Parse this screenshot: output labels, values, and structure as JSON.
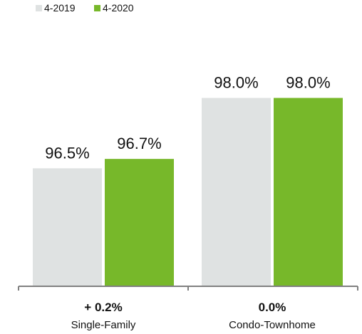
{
  "colors": {
    "series_2019": "#dfe2e2",
    "series_2020": "#77b82a",
    "axis": "#808080",
    "text": "#111111"
  },
  "chart_data": {
    "type": "bar",
    "categories": [
      "Single-Family",
      "Condo-Townhome"
    ],
    "series": [
      {
        "name": "4-2019",
        "values": [
          96.5,
          98.0
        ],
        "labels": [
          "96.5%",
          "98.0%"
        ]
      },
      {
        "name": "4-2020",
        "values": [
          96.7,
          98.0
        ],
        "labels": [
          "96.7%",
          "98.0%"
        ]
      }
    ],
    "changes": [
      "+ 0.2%",
      "0.0%"
    ],
    "legend_position": "top-left",
    "ylim": [
      94.0,
      98.6
    ],
    "grid": false,
    "title": "",
    "xlabel": "",
    "ylabel": ""
  }
}
